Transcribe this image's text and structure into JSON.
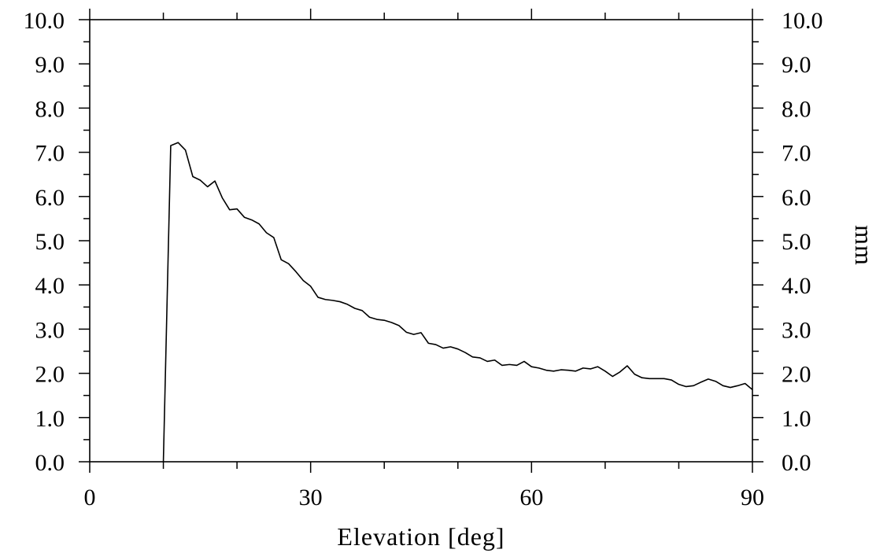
{
  "chart_data": {
    "type": "line",
    "title": "",
    "xlabel": "Elevation [deg]",
    "ylabel": "",
    "y2label": "mm",
    "xlim": [
      0,
      90
    ],
    "ylim": [
      0,
      10
    ],
    "x_ticks": [
      0,
      30,
      60,
      90
    ],
    "x_tick_labels": [
      "0",
      "30",
      "60",
      "90"
    ],
    "y_ticks": [
      0,
      1,
      2,
      3,
      4,
      5,
      6,
      7,
      8,
      9,
      10
    ],
    "y_tick_labels": [
      "0.0",
      "1.0",
      "2.0",
      "3.0",
      "4.0",
      "5.0",
      "6.0",
      "7.0",
      "8.0",
      "9.0",
      "10.0"
    ],
    "grid": false,
    "line_color": "#000000",
    "series": [
      {
        "x": [
          10,
          11,
          12,
          13,
          14,
          15,
          16,
          17,
          18,
          19,
          20,
          21,
          22,
          23,
          24,
          25,
          26,
          27,
          28,
          29,
          30,
          31,
          32,
          33,
          34,
          35,
          36,
          37,
          38,
          39,
          40,
          41,
          42,
          43,
          44,
          45,
          46,
          47,
          48,
          49,
          50,
          51,
          52,
          53,
          54,
          55,
          56,
          57,
          58,
          59,
          60,
          61,
          62,
          63,
          64,
          65,
          66,
          67,
          68,
          69,
          70,
          71,
          72,
          73,
          74,
          75,
          76,
          77,
          78,
          79,
          80,
          81,
          82,
          83,
          84,
          85,
          86,
          87,
          88,
          89,
          90
        ],
        "values": [
          0.0,
          7.15,
          7.22,
          7.05,
          6.45,
          6.37,
          6.22,
          6.35,
          5.97,
          5.7,
          5.72,
          5.53,
          5.47,
          5.38,
          5.18,
          5.07,
          4.57,
          4.48,
          4.3,
          4.1,
          3.97,
          3.72,
          3.67,
          3.65,
          3.62,
          3.56,
          3.47,
          3.42,
          3.27,
          3.22,
          3.2,
          3.15,
          3.08,
          2.93,
          2.88,
          2.92,
          2.68,
          2.65,
          2.57,
          2.6,
          2.55,
          2.47,
          2.37,
          2.35,
          2.27,
          2.3,
          2.18,
          2.2,
          2.18,
          2.27,
          2.15,
          2.12,
          2.07,
          2.05,
          2.08,
          2.07,
          2.05,
          2.12,
          2.1,
          2.15,
          2.05,
          1.93,
          2.03,
          2.17,
          1.98,
          1.9,
          1.88,
          1.88,
          1.88,
          1.85,
          1.75,
          1.7,
          1.72,
          1.8,
          1.87,
          1.82,
          1.72,
          1.68,
          1.72,
          1.77,
          1.63
        ]
      }
    ]
  }
}
